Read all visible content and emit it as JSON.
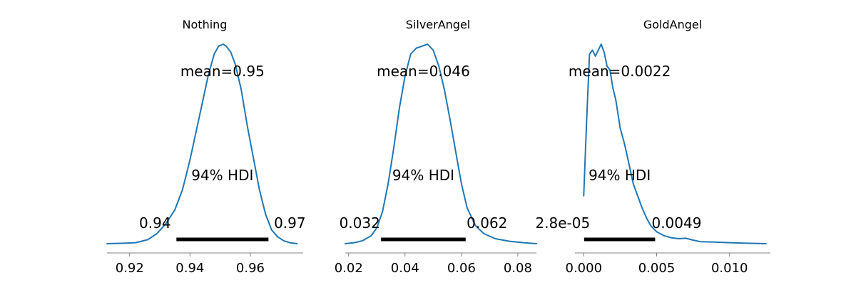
{
  "chart_data": [
    {
      "type": "line",
      "title": "Nothing",
      "mean_label": "mean=0.95",
      "hdi_label": "94% HDI",
      "hdi_low_label": "0.94",
      "hdi_high_label": "0.97",
      "hdi": [
        0.9355,
        0.966
      ],
      "xlim": [
        0.9125,
        0.9775
      ],
      "x_ticks": [
        0.92,
        0.94,
        0.96
      ],
      "x_tick_labels": [
        "0.92",
        "0.94",
        "0.96"
      ],
      "color": "#1f77b4",
      "density": {
        "x": [
          0.9125,
          0.918,
          0.922,
          0.926,
          0.929,
          0.932,
          0.935,
          0.9375,
          0.94,
          0.942,
          0.944,
          0.946,
          0.948,
          0.9495,
          0.951,
          0.952,
          0.9535,
          0.955,
          0.957,
          0.959,
          0.961,
          0.963,
          0.965,
          0.967,
          0.969,
          0.971,
          0.973,
          0.9755
        ],
        "y": [
          0.0,
          0.002,
          0.005,
          0.02,
          0.05,
          0.1,
          0.17,
          0.27,
          0.42,
          0.56,
          0.7,
          0.84,
          0.95,
          0.99,
          1.0,
          0.99,
          0.96,
          0.9,
          0.77,
          0.59,
          0.43,
          0.27,
          0.15,
          0.07,
          0.035,
          0.015,
          0.005,
          0.0
        ]
      }
    },
    {
      "type": "line",
      "title": "SilverAngel",
      "mean_label": "mean=0.046",
      "hdi_label": "94% HDI",
      "hdi_low_label": "0.032",
      "hdi_high_label": "0.062",
      "hdi": [
        0.0315,
        0.0615
      ],
      "xlim": [
        0.0188,
        0.0866
      ],
      "x_ticks": [
        0.02,
        0.04,
        0.06,
        0.08
      ],
      "x_tick_labels": [
        "0.02",
        "0.04",
        "0.06",
        "0.08"
      ],
      "color": "#1f77b4",
      "density": {
        "x": [
          0.0188,
          0.022,
          0.025,
          0.028,
          0.03,
          0.032,
          0.034,
          0.036,
          0.038,
          0.04,
          0.042,
          0.044,
          0.046,
          0.048,
          0.05,
          0.052,
          0.054,
          0.056,
          0.058,
          0.06,
          0.062,
          0.065,
          0.068,
          0.072,
          0.077,
          0.082,
          0.0866
        ],
        "y": [
          0.0,
          0.005,
          0.015,
          0.04,
          0.08,
          0.16,
          0.3,
          0.48,
          0.68,
          0.84,
          0.95,
          0.98,
          0.99,
          1.0,
          0.97,
          0.89,
          0.77,
          0.62,
          0.46,
          0.3,
          0.18,
          0.09,
          0.05,
          0.025,
          0.012,
          0.005,
          0.0
        ]
      }
    },
    {
      "type": "line",
      "title": "GoldAngel",
      "mean_label": "mean=0.0022",
      "hdi_label": "94% HDI",
      "hdi_low_label": "2.8e-05",
      "hdi_high_label": "0.0049",
      "hdi": [
        2.8e-05,
        0.0049
      ],
      "xlim": [
        -0.0006,
        0.0128
      ],
      "x_ticks": [
        0.0,
        0.005,
        0.01
      ],
      "x_tick_labels": [
        "0.000",
        "0.005",
        "0.010"
      ],
      "color": "#1f77b4",
      "density": {
        "x": [
          0.0,
          0.0002,
          0.0004,
          0.0006,
          0.0008,
          0.001,
          0.0012,
          0.0014,
          0.0016,
          0.0018,
          0.002,
          0.0022,
          0.0025,
          0.0028,
          0.0031,
          0.0034,
          0.0037,
          0.004,
          0.0043,
          0.0046,
          0.005,
          0.0055,
          0.006,
          0.0065,
          0.007,
          0.0075,
          0.008,
          0.009,
          0.01,
          0.011,
          0.0125
        ],
        "y": [
          0.24,
          0.62,
          0.95,
          0.97,
          0.94,
          0.97,
          1.0,
          0.96,
          0.89,
          0.87,
          0.78,
          0.72,
          0.58,
          0.5,
          0.4,
          0.3,
          0.24,
          0.18,
          0.13,
          0.09,
          0.06,
          0.04,
          0.03,
          0.025,
          0.027,
          0.018,
          0.01,
          0.008,
          0.005,
          0.003,
          0.0
        ]
      }
    }
  ]
}
